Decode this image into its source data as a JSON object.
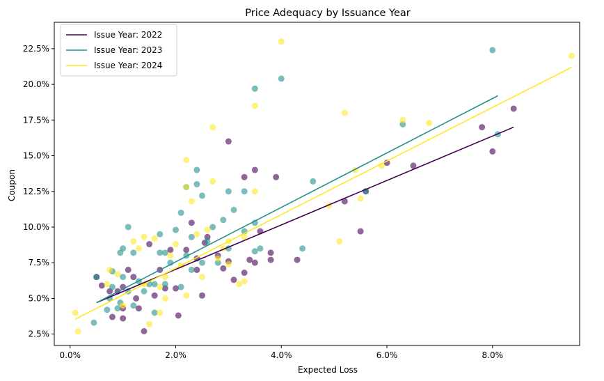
{
  "chart_data": {
    "type": "scatter",
    "title": "Price Adequacy by Issuance Year",
    "xlabel": "Expected Loss",
    "ylabel": "Coupon",
    "xlim": [
      -0.003,
      0.0965
    ],
    "ylim": [
      0.017,
      0.2435
    ],
    "x_ticks": [
      {
        "value": 0.0,
        "label": "0.0%"
      },
      {
        "value": 0.02,
        "label": "2.0%"
      },
      {
        "value": 0.04,
        "label": "4.0%"
      },
      {
        "value": 0.06,
        "label": "6.0%"
      },
      {
        "value": 0.08,
        "label": "8.0%"
      }
    ],
    "y_ticks": [
      {
        "value": 0.025,
        "label": "2.5%"
      },
      {
        "value": 0.05,
        "label": "5.0%"
      },
      {
        "value": 0.075,
        "label": "7.5%"
      },
      {
        "value": 0.1,
        "label": "10.0%"
      },
      {
        "value": 0.125,
        "label": "12.5%"
      },
      {
        "value": 0.15,
        "label": "15.0%"
      },
      {
        "value": 0.175,
        "label": "17.5%"
      },
      {
        "value": 0.2,
        "label": "20.0%"
      },
      {
        "value": 0.225,
        "label": "22.5%"
      }
    ],
    "grid": false,
    "legend_position": "top-left",
    "series": [
      {
        "name": "Issue Year: 2022",
        "color": "#440154",
        "points": [
          [
            0.005,
            0.065
          ],
          [
            0.006,
            0.059
          ],
          [
            0.0075,
            0.055
          ],
          [
            0.008,
            0.037
          ],
          [
            0.009,
            0.055
          ],
          [
            0.01,
            0.058
          ],
          [
            0.01,
            0.043
          ],
          [
            0.01,
            0.036
          ],
          [
            0.011,
            0.07
          ],
          [
            0.012,
            0.065
          ],
          [
            0.0125,
            0.05
          ],
          [
            0.013,
            0.043
          ],
          [
            0.014,
            0.027
          ],
          [
            0.015,
            0.088
          ],
          [
            0.016,
            0.052
          ],
          [
            0.017,
            0.07
          ],
          [
            0.018,
            0.057
          ],
          [
            0.019,
            0.084
          ],
          [
            0.02,
            0.057
          ],
          [
            0.0205,
            0.038
          ],
          [
            0.022,
            0.084
          ],
          [
            0.023,
            0.103
          ],
          [
            0.024,
            0.078
          ],
          [
            0.024,
            0.07
          ],
          [
            0.025,
            0.052
          ],
          [
            0.0255,
            0.089
          ],
          [
            0.026,
            0.093
          ],
          [
            0.028,
            0.08
          ],
          [
            0.029,
            0.071
          ],
          [
            0.03,
            0.16
          ],
          [
            0.03,
            0.076
          ],
          [
            0.031,
            0.063
          ],
          [
            0.033,
            0.068
          ],
          [
            0.033,
            0.135
          ],
          [
            0.034,
            0.077
          ],
          [
            0.035,
            0.075
          ],
          [
            0.035,
            0.14
          ],
          [
            0.036,
            0.097
          ],
          [
            0.038,
            0.082
          ],
          [
            0.038,
            0.077
          ],
          [
            0.039,
            0.135
          ],
          [
            0.043,
            0.077
          ],
          [
            0.052,
            0.118
          ],
          [
            0.055,
            0.097
          ],
          [
            0.056,
            0.125
          ],
          [
            0.06,
            0.145
          ],
          [
            0.065,
            0.143
          ],
          [
            0.078,
            0.17
          ],
          [
            0.08,
            0.153
          ],
          [
            0.084,
            0.183
          ]
        ],
        "trend": [
          [
            0.005,
            0.047
          ],
          [
            0.084,
            0.17
          ]
        ]
      },
      {
        "name": "Issue Year: 2023",
        "color": "#21918c",
        "points": [
          [
            0.0045,
            0.033
          ],
          [
            0.005,
            0.065
          ],
          [
            0.007,
            0.042
          ],
          [
            0.0075,
            0.05
          ],
          [
            0.008,
            0.058
          ],
          [
            0.008,
            0.069
          ],
          [
            0.009,
            0.043
          ],
          [
            0.0095,
            0.047
          ],
          [
            0.0095,
            0.082
          ],
          [
            0.01,
            0.085
          ],
          [
            0.01,
            0.065
          ],
          [
            0.011,
            0.1
          ],
          [
            0.011,
            0.055
          ],
          [
            0.012,
            0.082
          ],
          [
            0.012,
            0.045
          ],
          [
            0.013,
            0.062
          ],
          [
            0.014,
            0.055
          ],
          [
            0.015,
            0.06
          ],
          [
            0.016,
            0.04
          ],
          [
            0.016,
            0.06
          ],
          [
            0.017,
            0.082
          ],
          [
            0.017,
            0.095
          ],
          [
            0.018,
            0.082
          ],
          [
            0.018,
            0.06
          ],
          [
            0.019,
            0.075
          ],
          [
            0.02,
            0.098
          ],
          [
            0.021,
            0.11
          ],
          [
            0.021,
            0.058
          ],
          [
            0.022,
            0.128
          ],
          [
            0.022,
            0.08
          ],
          [
            0.023,
            0.093
          ],
          [
            0.023,
            0.07
          ],
          [
            0.024,
            0.14
          ],
          [
            0.024,
            0.13
          ],
          [
            0.025,
            0.122
          ],
          [
            0.025,
            0.075
          ],
          [
            0.026,
            0.09
          ],
          [
            0.027,
            0.1
          ],
          [
            0.028,
            0.075
          ],
          [
            0.029,
            0.105
          ],
          [
            0.03,
            0.085
          ],
          [
            0.03,
            0.125
          ],
          [
            0.031,
            0.112
          ],
          [
            0.033,
            0.125
          ],
          [
            0.033,
            0.097
          ],
          [
            0.035,
            0.197
          ],
          [
            0.035,
            0.103
          ],
          [
            0.035,
            0.083
          ],
          [
            0.036,
            0.085
          ],
          [
            0.04,
            0.204
          ],
          [
            0.044,
            0.085
          ],
          [
            0.046,
            0.132
          ],
          [
            0.056,
            0.125
          ],
          [
            0.063,
            0.172
          ],
          [
            0.08,
            0.224
          ],
          [
            0.081,
            0.165
          ]
        ],
        "trend": [
          [
            0.005,
            0.047
          ],
          [
            0.081,
            0.192
          ]
        ]
      },
      {
        "name": "Issue Year: 2024",
        "color": "#fde725",
        "points": [
          [
            0.001,
            0.04
          ],
          [
            0.0015,
            0.027
          ],
          [
            0.007,
            0.06
          ],
          [
            0.0075,
            0.07
          ],
          [
            0.009,
            0.067
          ],
          [
            0.01,
            0.045
          ],
          [
            0.012,
            0.09
          ],
          [
            0.013,
            0.085
          ],
          [
            0.014,
            0.093
          ],
          [
            0.014,
            0.06
          ],
          [
            0.015,
            0.032
          ],
          [
            0.016,
            0.092
          ],
          [
            0.017,
            0.058
          ],
          [
            0.017,
            0.04
          ],
          [
            0.018,
            0.065
          ],
          [
            0.018,
            0.05
          ],
          [
            0.019,
            0.08
          ],
          [
            0.02,
            0.088
          ],
          [
            0.021,
            0.073
          ],
          [
            0.022,
            0.052
          ],
          [
            0.022,
            0.147
          ],
          [
            0.022,
            0.128
          ],
          [
            0.023,
            0.118
          ],
          [
            0.024,
            0.095
          ],
          [
            0.025,
            0.065
          ],
          [
            0.026,
            0.098
          ],
          [
            0.027,
            0.132
          ],
          [
            0.027,
            0.17
          ],
          [
            0.028,
            0.078
          ],
          [
            0.029,
            0.085
          ],
          [
            0.03,
            0.09
          ],
          [
            0.03,
            0.074
          ],
          [
            0.032,
            0.06
          ],
          [
            0.033,
            0.093
          ],
          [
            0.033,
            0.062
          ],
          [
            0.035,
            0.185
          ],
          [
            0.035,
            0.125
          ],
          [
            0.04,
            0.23
          ],
          [
            0.049,
            0.115
          ],
          [
            0.051,
            0.09
          ],
          [
            0.052,
            0.18
          ],
          [
            0.054,
            0.14
          ],
          [
            0.055,
            0.12
          ],
          [
            0.059,
            0.143
          ],
          [
            0.063,
            0.175
          ],
          [
            0.068,
            0.173
          ],
          [
            0.095,
            0.22
          ]
        ],
        "trend": [
          [
            0.001,
            0.0355
          ],
          [
            0.095,
            0.212
          ]
        ]
      }
    ]
  }
}
